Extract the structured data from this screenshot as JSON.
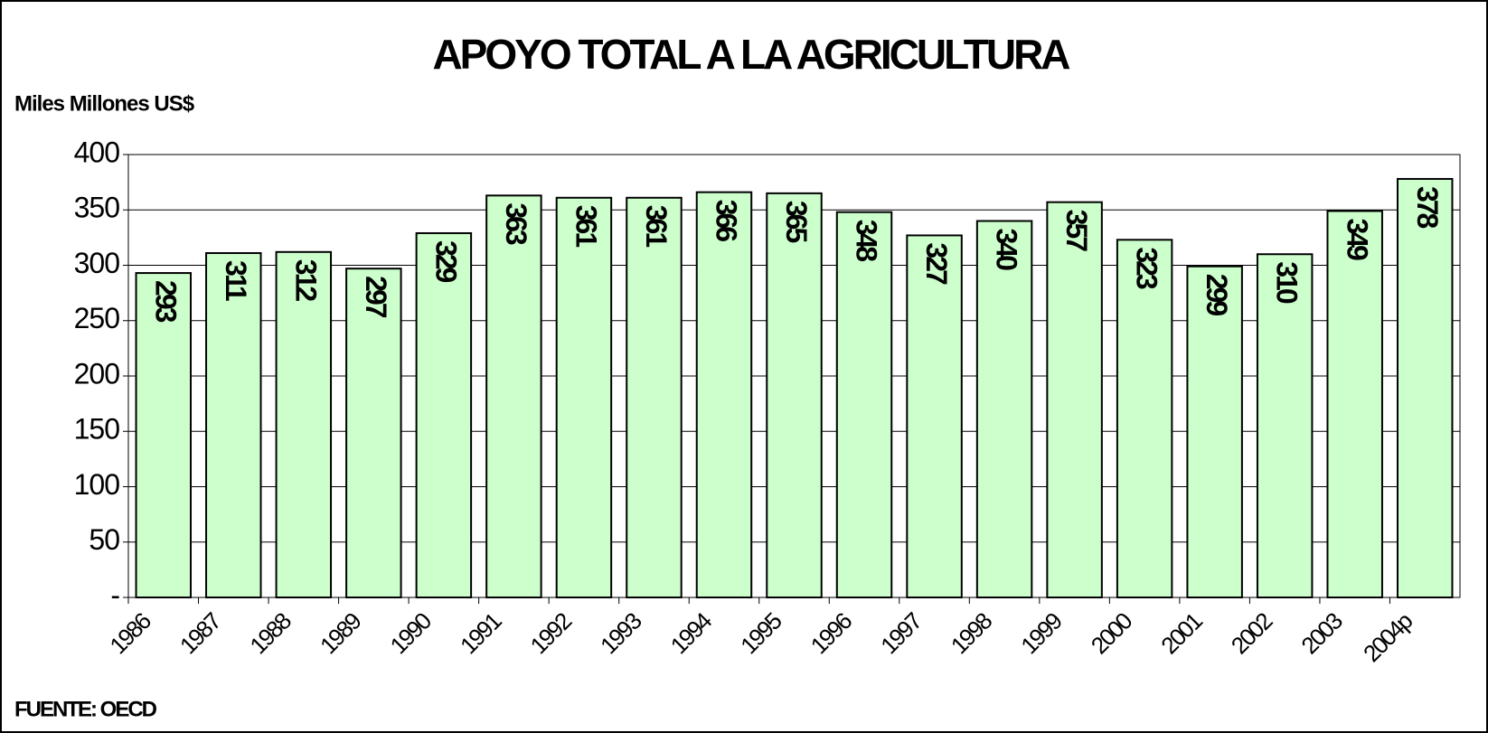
{
  "chart_data": {
    "type": "bar",
    "title": "APOYO TOTAL A LA AGRICULTURA",
    "y_label": "Miles Millones US$",
    "source": "FUENTE: OECD",
    "categories": [
      "1986",
      "1987",
      "1988",
      "1989",
      "1990",
      "1991",
      "1992",
      "1993",
      "1994",
      "1995",
      "1996",
      "1997",
      "1998",
      "1999",
      "2000",
      "2001",
      "2002",
      "2003",
      "2004p"
    ],
    "values": [
      293,
      311,
      312,
      297,
      329,
      363,
      361,
      361,
      366,
      365,
      348,
      327,
      340,
      357,
      323,
      299,
      310,
      349,
      378
    ],
    "color": "#ccffcc",
    "ylim": [
      0,
      400
    ],
    "yticks": [
      {
        "value": 0,
        "label": "-"
      },
      50,
      100,
      150,
      200,
      250,
      300,
      350,
      400
    ],
    "grid": true
  }
}
